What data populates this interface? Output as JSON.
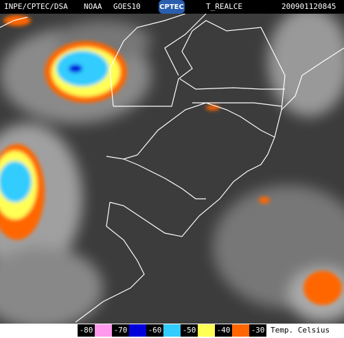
{
  "header": {
    "source": "INPE/CPTEC/DSA",
    "agency": "NOAA",
    "satellite": "GOES10",
    "logo": "CPTEC",
    "product": "T_REALCE",
    "timestamp": "200901120845"
  },
  "legend": {
    "items": [
      {
        "label": "-80",
        "color": "#ff99ee"
      },
      {
        "label": "-70",
        "color": "#0000dd"
      },
      {
        "label": "-60",
        "color": "#33ccff"
      },
      {
        "label": "-50",
        "color": "#ffff55"
      },
      {
        "label": "-40",
        "color": "#ff6600"
      },
      {
        "label": "-30"
      }
    ],
    "title": "Temp. Celsius"
  }
}
